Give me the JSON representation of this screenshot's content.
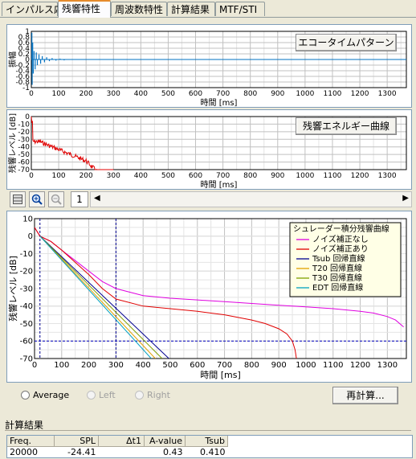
{
  "tabs": [
    {
      "label": "インパルス応答",
      "active": false
    },
    {
      "label": "残響特性",
      "active": true
    },
    {
      "label": "周波数特性",
      "active": false
    },
    {
      "label": "計算結果",
      "active": false
    },
    {
      "label": "MTF/STI",
      "active": false
    }
  ],
  "echo_chart": {
    "button_label": "エコータイムパターン",
    "ylabel": "振幅",
    "xlabel": "時間 [ms]",
    "y_ticks": [
      "1",
      "0.8",
      "0.6",
      "0.4",
      "0.2",
      "0",
      "-0.2",
      "-0.4",
      "-0.6",
      "-0.8",
      "-1"
    ],
    "x_ticks": [
      "0",
      "100",
      "200",
      "300",
      "400",
      "500",
      "600",
      "700",
      "800",
      "900",
      "1000",
      "1100",
      "1200",
      "1300"
    ]
  },
  "energy_chart": {
    "button_label": "残響エネルギー曲線",
    "ylabel": "残響レベル [dB]",
    "xlabel": "時間 [ms]",
    "y_ticks": [
      "0",
      "-10",
      "-20",
      "-30",
      "-40",
      "-50",
      "-60",
      "-70"
    ],
    "x_ticks": [
      "0",
      "100",
      "200",
      "300",
      "400",
      "500",
      "600",
      "700",
      "800",
      "900",
      "1000",
      "1100",
      "1200",
      "1300"
    ]
  },
  "toolbar": {
    "zoom_level": "1"
  },
  "schroeder_chart": {
    "ylabel": "残響レベル [dB]",
    "xlabel": "時間 [ms]",
    "y_ticks": [
      "10",
      "0",
      "-10",
      "-20",
      "-30",
      "-40",
      "-50",
      "-60",
      "-70"
    ],
    "x_ticks": [
      "0",
      "100",
      "200",
      "300",
      "400",
      "500",
      "600",
      "700",
      "800",
      "900",
      "1000",
      "1100",
      "1200",
      "1300"
    ],
    "legend_title": "シュレーダー積分残響曲線",
    "legend": [
      {
        "label": "ノイズ補正なし",
        "color": "#e000e0"
      },
      {
        "label": "ノイズ補正あり",
        "color": "#e00000"
      },
      {
        "label": "Tsub 回帰直線",
        "color": "#000090"
      },
      {
        "label": "T20 回帰直線",
        "color": "#e0a000"
      },
      {
        "label": "T30 回帰直線",
        "color": "#80a000"
      },
      {
        "label": "EDT 回帰直線",
        "color": "#00a0c0"
      }
    ]
  },
  "chart_data": {
    "type": "line",
    "xlabel": "時間 [ms]",
    "ylabel": "残響レベル [dB]",
    "xlim": [
      0,
      1370
    ],
    "ylim": [
      -70,
      10
    ],
    "markers": {
      "vertical_ms": [
        20,
        300
      ],
      "horizontal_db": -60
    },
    "series": [
      {
        "name": "ノイズ補正なし",
        "color": "#e000e0",
        "x": [
          0,
          20,
          60,
          100,
          150,
          200,
          250,
          300,
          400,
          500,
          600,
          700,
          800,
          900,
          1000,
          1100,
          1200,
          1250,
          1300,
          1330,
          1360
        ],
        "y": [
          5,
          0,
          -3,
          -8,
          -14,
          -20,
          -26,
          -30,
          -34,
          -35.5,
          -36.5,
          -37.5,
          -38.5,
          -39.5,
          -40.5,
          -41.5,
          -43,
          -44,
          -46,
          -48,
          -52
        ]
      },
      {
        "name": "ノイズ補正あり",
        "color": "#e00000",
        "x": [
          0,
          20,
          60,
          100,
          150,
          200,
          250,
          300,
          400,
          500,
          600,
          700,
          800,
          850,
          900,
          930,
          950,
          960,
          965
        ],
        "y": [
          5,
          0,
          -3,
          -8,
          -15,
          -22,
          -30,
          -36,
          -40,
          -41.5,
          -43,
          -45,
          -48,
          -50,
          -53,
          -56,
          -60,
          -65,
          -70
        ]
      },
      {
        "name": "Tsub 回帰直線",
        "color": "#000090",
        "x": [
          20,
          495
        ],
        "y": [
          0,
          -70
        ]
      },
      {
        "name": "T20 回帰直線",
        "color": "#e0a000",
        "x": [
          20,
          445
        ],
        "y": [
          0,
          -70
        ]
      },
      {
        "name": "T30 回帰直線",
        "color": "#80a000",
        "x": [
          20,
          470
        ],
        "y": [
          0,
          -70
        ]
      },
      {
        "name": "EDT 回帰直線",
        "color": "#00a0c0",
        "x": [
          20,
          430
        ],
        "y": [
          0,
          -70
        ]
      }
    ]
  },
  "radios": [
    {
      "label": "Average",
      "disabled": false
    },
    {
      "label": "Left",
      "disabled": true
    },
    {
      "label": "Right",
      "disabled": true
    }
  ],
  "recalc_label": "再計算...",
  "results": {
    "section_label": "計算結果",
    "headers": [
      "Freq.",
      "SPL",
      "Δt1",
      "A-value",
      "Tsub"
    ],
    "row": [
      "20000",
      "-24.41",
      "",
      "0.43",
      "0.410"
    ]
  }
}
